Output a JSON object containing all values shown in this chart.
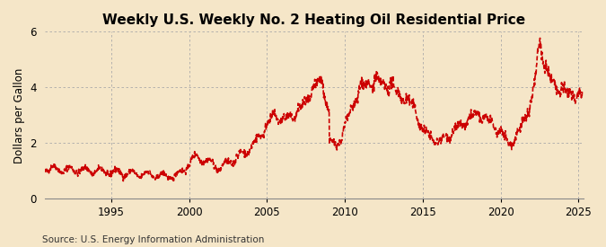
{
  "title": "Weekly U.S. Weekly No. 2 Heating Oil Residential Price",
  "ylabel": "Dollars per Gallon",
  "source": "Source: U.S. Energy Information Administration",
  "background_color": "#F5E6C8",
  "line_color": "#CC0000",
  "grid_color": "#AAAAAA",
  "ylim": [
    0,
    6
  ],
  "yticks": [
    0,
    2,
    4,
    6
  ],
  "title_fontsize": 11,
  "ylabel_fontsize": 8.5,
  "source_fontsize": 7.5,
  "x_start_year": 1990.75,
  "x_end_year": 2025.3,
  "xticks": [
    1995,
    2000,
    2005,
    2010,
    2015,
    2020,
    2025
  ],
  "marker_size": 3.5,
  "linewidth": 1.2
}
